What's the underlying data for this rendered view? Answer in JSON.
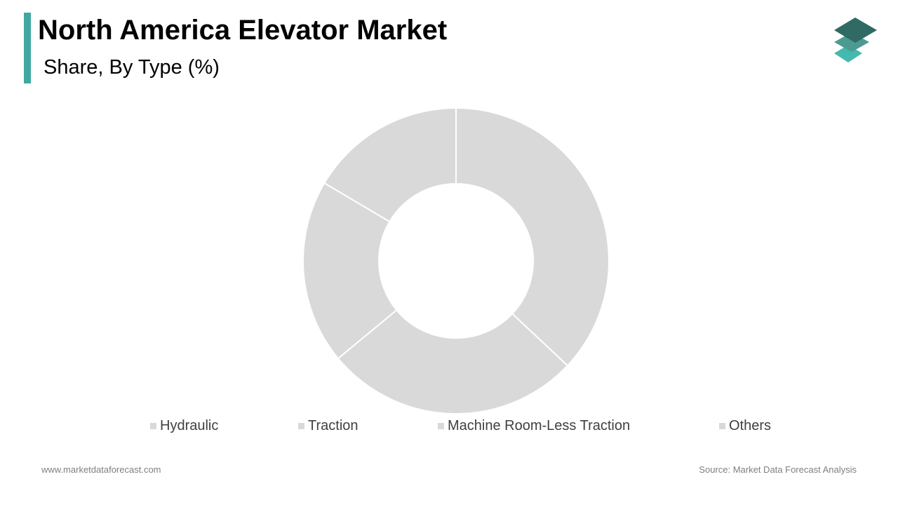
{
  "header": {
    "title": "North America Elevator Market",
    "subtitle": "Share, By Type (%)"
  },
  "colors": {
    "accent": "#3fa9a0",
    "slice_fill": "#d9d9d9",
    "slice_stroke": "#ffffff",
    "logo_top": "#2f6a64",
    "logo_mid": "#4d9a92",
    "logo_bottom": "#45b8b0"
  },
  "chart_data": {
    "type": "pie",
    "donut": true,
    "title": "Share, By Type (%)",
    "categories": [
      "Hydraulic",
      "Traction",
      "Machine Room-Less Traction",
      "Others"
    ],
    "values": [
      37.0,
      27.0,
      19.5,
      16.5
    ],
    "legend_position": "bottom"
  },
  "footer": {
    "website": "www.marketdataforecast.com",
    "source": "Source: Market Data Forecast Analysis"
  }
}
